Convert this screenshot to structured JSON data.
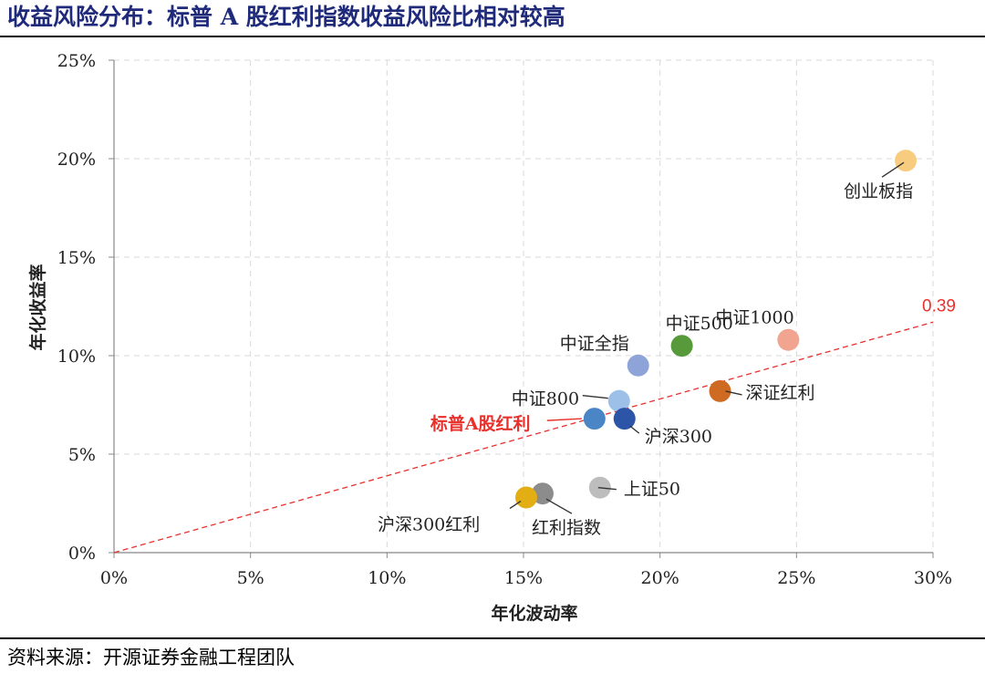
{
  "header": {
    "title": "收益风险分布：标普 A 股红利指数收益风险比相对较高"
  },
  "footer": {
    "source": "资料来源：开源证券金融工程团队"
  },
  "colors": {
    "title": "#1f2a7a",
    "highlight": "#e8302c",
    "grid": "#d9d9d9",
    "axis": "#888888"
  },
  "chart_data": {
    "type": "scatter",
    "xlabel": "年化波动率",
    "ylabel": "年化收益率",
    "xlim": [
      0,
      0.3
    ],
    "ylim": [
      0,
      0.25
    ],
    "x_ticks": [
      "0%",
      "5%",
      "10%",
      "15%",
      "20%",
      "25%",
      "30%"
    ],
    "y_ticks": [
      "0%",
      "5%",
      "10%",
      "15%",
      "20%",
      "25%"
    ],
    "grid": true,
    "reference_line": {
      "label": "0.39",
      "slope": 0.39,
      "color": "#e8302c",
      "style": "dashed"
    },
    "points": [
      {
        "name": "创业板指",
        "x": 0.29,
        "y": 0.199,
        "color": "#f8cc7e",
        "highlight": false
      },
      {
        "name": "中证1000",
        "x": 0.247,
        "y": 0.108,
        "color": "#f1a48f",
        "highlight": false
      },
      {
        "name": "中证500",
        "x": 0.208,
        "y": 0.105,
        "color": "#569a3b",
        "highlight": false
      },
      {
        "name": "中证全指",
        "x": 0.192,
        "y": 0.095,
        "color": "#8ea4d8",
        "highlight": false
      },
      {
        "name": "深证红利",
        "x": 0.222,
        "y": 0.082,
        "color": "#cf6a22",
        "highlight": false
      },
      {
        "name": "中证800",
        "x": 0.185,
        "y": 0.077,
        "color": "#9cc0e8",
        "highlight": false
      },
      {
        "name": "标普A股红利",
        "x": 0.176,
        "y": 0.068,
        "color": "#4a85c6",
        "highlight": true
      },
      {
        "name": "沪深300",
        "x": 0.187,
        "y": 0.068,
        "color": "#2c55a8",
        "highlight": false
      },
      {
        "name": "上证50",
        "x": 0.178,
        "y": 0.033,
        "color": "#bdbdbd",
        "highlight": false
      },
      {
        "name": "红利指数",
        "x": 0.157,
        "y": 0.03,
        "color": "#8c8c8c",
        "highlight": false
      },
      {
        "name": "沪深300红利",
        "x": 0.151,
        "y": 0.028,
        "color": "#e2ae14",
        "highlight": false
      }
    ]
  }
}
